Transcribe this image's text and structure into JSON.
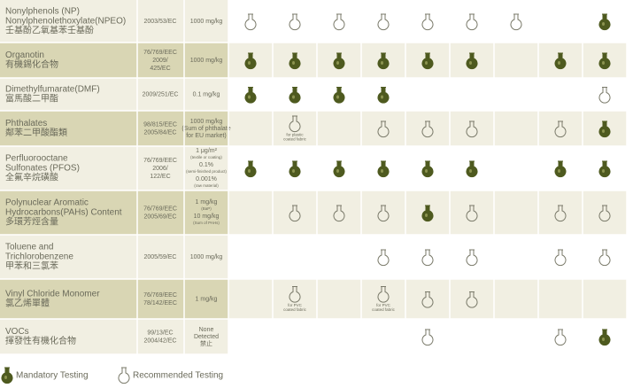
{
  "table": {
    "rows": [
      {
        "name": [
          "Nonylphenols (NP)",
          "Nonylphenolethoxylate(NPEO)",
          "壬基酚乙氧基苯壬基酚"
        ],
        "directive": [
          "2003/53/EC"
        ],
        "limit": [
          "1000 mg/kg"
        ],
        "cells": [
          "recommended",
          "recommended",
          "recommended",
          "recommended",
          "recommended",
          "recommended",
          "recommended",
          null,
          "mandatory"
        ]
      },
      {
        "name": [
          "Organotin",
          "有機錫化合物"
        ],
        "directive": [
          "76/769/EEC",
          "2009/",
          "425/EC"
        ],
        "limit": [
          "1000 mg/kg"
        ],
        "cells": [
          "mandatory",
          "mandatory",
          "mandatory",
          "mandatory",
          "mandatory",
          "mandatory",
          null,
          "mandatory",
          "mandatory"
        ]
      },
      {
        "name": [
          "Dimethylfumarate(DMF)",
          "富馬酸二甲酯"
        ],
        "directive": [
          "2009/251/EC"
        ],
        "limit": [
          "0.1 mg/kg"
        ],
        "cells": [
          "mandatory",
          "mandatory",
          "mandatory",
          "mandatory",
          null,
          null,
          null,
          null,
          "recommended"
        ]
      },
      {
        "name": [
          "Phthalates",
          "鄰苯二甲酸酯類"
        ],
        "directive": [
          "98/815/EEC",
          "2005/84/EC"
        ],
        "limit": [
          "1000 mg/kg",
          "(Sum of phthalate",
          "for EU market)"
        ],
        "cells": [
          null,
          {
            "mark": "recommended",
            "note": [
              "for plastic",
              "coated fabric"
            ]
          },
          null,
          "recommended",
          "recommended",
          "recommended",
          null,
          "recommended",
          "mandatory"
        ]
      },
      {
        "name": [
          "Perfluorooctane",
          "Sulfonates (PFOS)",
          "全氟辛烷磺酸"
        ],
        "directive": [
          "76/769/EEC",
          "2006/",
          "122/EC"
        ],
        "limit": [
          "1 μg/m²",
          "(textile or coating)",
          "0.1%",
          "(semi-finished product)",
          "0.001%",
          "(raw material)"
        ],
        "cells": [
          "mandatory",
          "mandatory",
          "mandatory",
          "mandatory",
          "mandatory",
          "mandatory",
          null,
          "mandatory",
          "mandatory"
        ]
      },
      {
        "name": [
          "Polynuclear Aromatic",
          "Hydrocarbons(PAHs) Content",
          "多環芳烴含量"
        ],
        "directive": [
          "76/769/EEC",
          "2005/69/EC"
        ],
        "limit": [
          "1 mg/kg",
          "(BaP)",
          "10 mg/kg",
          "(Sum of PAHs)"
        ],
        "cells": [
          null,
          "recommended",
          "recommended",
          "recommended",
          "mandatory",
          "recommended",
          null,
          "recommended",
          "recommended"
        ]
      },
      {
        "name": [
          "Toluene and",
          "Trichlorobenzene",
          "甲苯和三氯苯"
        ],
        "directive": [
          "2005/59/EC"
        ],
        "limit": [
          "1000 mg/kg"
        ],
        "cells": [
          null,
          null,
          null,
          "recommended",
          "recommended",
          "recommended",
          null,
          "recommended",
          "recommended"
        ]
      },
      {
        "name": [
          "Vinyl Chloride Monomer",
          "氯乙烯單體"
        ],
        "directive": [
          "76/769/EEC",
          "78/142/EEC"
        ],
        "limit": [
          "1 mg/kg"
        ],
        "cells": [
          null,
          {
            "mark": "recommended",
            "note": [
              "for PVC",
              "coated fabric"
            ]
          },
          null,
          {
            "mark": "recommended",
            "note": [
              "for PVC",
              "coated fabric"
            ]
          },
          "recommended",
          "recommended",
          null,
          null,
          null
        ]
      },
      {
        "name": [
          "VOCs",
          "揮發性有機化合物"
        ],
        "directive": [
          "99/13/EC",
          "2004/42/EC"
        ],
        "limit": [
          "None",
          "Detected",
          "禁止"
        ],
        "cells": [
          null,
          null,
          null,
          null,
          "recommended",
          null,
          null,
          "recommended",
          "mandatory"
        ]
      }
    ],
    "legend": {
      "mandatory": "Mandatory Testing",
      "recommended": "Recommended Testing"
    }
  }
}
